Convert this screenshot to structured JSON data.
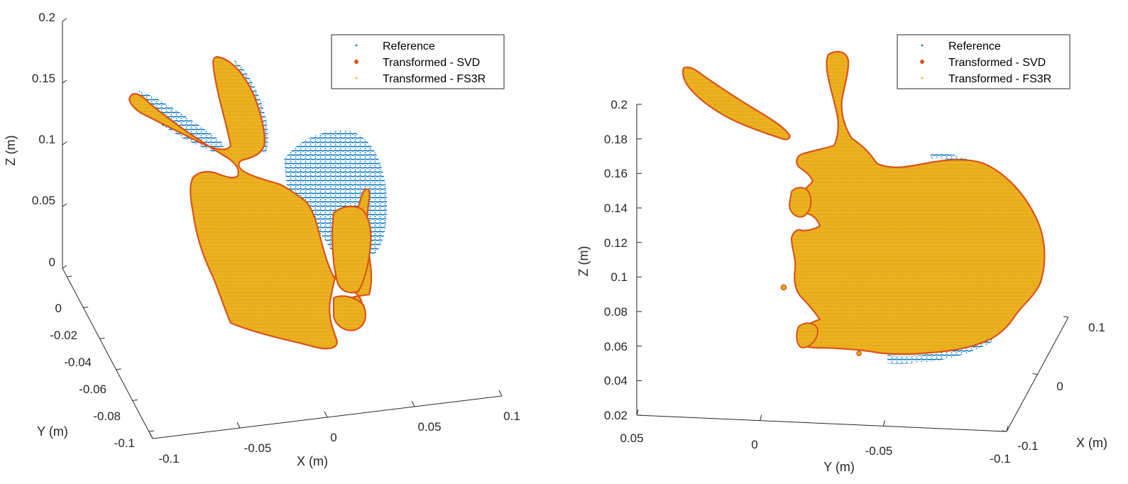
{
  "colors": {
    "reference": "#0072BD",
    "svd": "#D95319",
    "fs3r": "#EDB120"
  },
  "chart_data": [
    {
      "type": "scatter",
      "view": "3d",
      "legend_position": "top-right",
      "grid": false,
      "legend": [
        "Reference",
        "Transformed - SVD",
        "Transformed - FS3R"
      ],
      "series": [
        {
          "name": "Reference",
          "marker": "small-dot"
        },
        {
          "name": "Transformed - SVD",
          "marker": "dot"
        },
        {
          "name": "Transformed - FS3R",
          "marker": "small-dot"
        }
      ],
      "xlabel": "X (m)",
      "ylabel": "Y (m)",
      "zlabel": "Z (m)",
      "xticks": [
        "-0.1",
        "-0.05",
        "0",
        "0.05",
        "0.1"
      ],
      "yticks": [
        "0",
        "-0.02",
        "-0.04",
        "-0.06",
        "-0.08",
        "-0.1"
      ],
      "zticks": [
        "0",
        "0.05",
        "0.1",
        "0.15",
        "0.2"
      ],
      "xlim": [
        -0.1,
        0.1
      ],
      "ylim": [
        -0.1,
        0
      ],
      "zlim": [
        0,
        0.2
      ]
    },
    {
      "type": "scatter",
      "view": "3d",
      "legend_position": "top-right",
      "grid": false,
      "legend": [
        "Reference",
        "Transformed - SVD",
        "Transformed - FS3R"
      ],
      "series": [
        {
          "name": "Reference",
          "marker": "small-dot"
        },
        {
          "name": "Transformed - SVD",
          "marker": "dot"
        },
        {
          "name": "Transformed - FS3R",
          "marker": "small-dot"
        }
      ],
      "xlabel": "X (m)",
      "ylabel": "Y (m)",
      "zlabel": "Z (m)",
      "xticks": [
        "-0.1",
        "0",
        "0.1"
      ],
      "yticks": [
        "0.05",
        "0",
        "-0.05",
        "-0.1"
      ],
      "zticks": [
        "0.02",
        "0.04",
        "0.06",
        "0.08",
        "0.1",
        "0.12",
        "0.14",
        "0.16",
        "0.18",
        "0.2"
      ],
      "xlim": [
        -0.1,
        0.1
      ],
      "ylim": [
        -0.1,
        0.05
      ],
      "zlim": [
        0.02,
        0.2
      ]
    }
  ]
}
